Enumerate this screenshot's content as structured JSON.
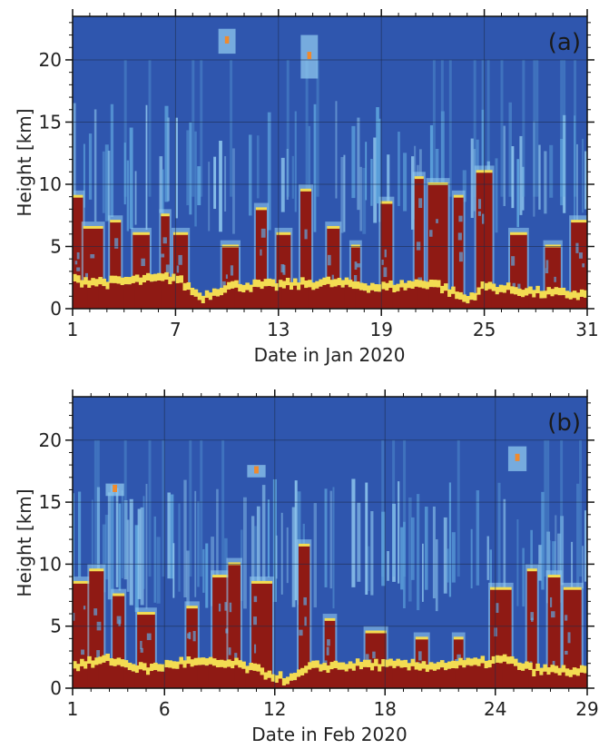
{
  "colors": {
    "background_blue": "#2f56ae",
    "light_blue": "#8fc8ee",
    "cyan": "#5fa6de",
    "yellow": "#f3dc52",
    "orange": "#ef8a2e",
    "dark_red": "#8f1a14"
  },
  "chart_data": [
    {
      "type": "heatmap",
      "panel_label": "(a)",
      "xlabel": "Date in Jan 2020",
      "ylabel": "Height [km]",
      "xlim": [
        1,
        31
      ],
      "ylim": [
        0,
        23.5
      ],
      "x_ticks": [
        1,
        7,
        13,
        19,
        25,
        31
      ],
      "y_ticks": [
        0,
        5,
        10,
        15,
        20
      ],
      "grid": true,
      "color_scale": [
        "#2f56ae",
        "#5fa6de",
        "#8fc8ee",
        "#f3dc52",
        "#ef8a2e",
        "#8f1a14"
      ],
      "surface_layer_km": [
        {
          "day": 1,
          "top": 2.0
        },
        {
          "day": 3,
          "top": 1.8
        },
        {
          "day": 5,
          "top": 2.0
        },
        {
          "day": 7,
          "top": 2.2
        },
        {
          "day": 8.5,
          "top": 0.6
        },
        {
          "day": 10,
          "top": 1.5
        },
        {
          "day": 13,
          "top": 1.6
        },
        {
          "day": 16,
          "top": 1.8
        },
        {
          "day": 19,
          "top": 1.4
        },
        {
          "day": 22,
          "top": 1.8
        },
        {
          "day": 24,
          "top": 0.4
        },
        {
          "day": 25,
          "top": 1.5
        },
        {
          "day": 28,
          "top": 1.0
        },
        {
          "day": 31,
          "top": 0.8
        }
      ],
      "aerosol_plumes_km": [
        {
          "day": 1.3,
          "top": 9.0
        },
        {
          "day": 2.2,
          "top": 6.5
        },
        {
          "day": 3.5,
          "top": 7.0
        },
        {
          "day": 5.0,
          "top": 6.0
        },
        {
          "day": 6.4,
          "top": 7.5
        },
        {
          "day": 7.3,
          "top": 6.0
        },
        {
          "day": 10.2,
          "top": 5.0
        },
        {
          "day": 12.0,
          "top": 8.0
        },
        {
          "day": 13.3,
          "top": 6.0
        },
        {
          "day": 14.6,
          "top": 9.5
        },
        {
          "day": 16.2,
          "top": 6.5
        },
        {
          "day": 17.5,
          "top": 5.0
        },
        {
          "day": 19.3,
          "top": 8.5
        },
        {
          "day": 21.2,
          "top": 10.5
        },
        {
          "day": 22.3,
          "top": 10.0
        },
        {
          "day": 23.5,
          "top": 9.0
        },
        {
          "day": 25.0,
          "top": 11.0
        },
        {
          "day": 27.0,
          "top": 6.0
        },
        {
          "day": 29.0,
          "top": 5.0
        },
        {
          "day": 30.6,
          "top": 7.0
        }
      ],
      "upper_features_km": [
        {
          "day": 14.8,
          "bottom": 18.5,
          "top": 22.0
        },
        {
          "day": 10.0,
          "bottom": 20.5,
          "top": 22.5
        }
      ]
    },
    {
      "type": "heatmap",
      "panel_label": "(b)",
      "xlabel": "Date in Feb 2020",
      "ylabel": "Height [km]",
      "xlim": [
        1,
        29
      ],
      "ylim": [
        0,
        23.5
      ],
      "x_ticks": [
        1,
        6,
        12,
        18,
        24,
        29
      ],
      "y_ticks": [
        0,
        5,
        10,
        15,
        20
      ],
      "grid": true,
      "color_scale": [
        "#2f56ae",
        "#5fa6de",
        "#8fc8ee",
        "#f3dc52",
        "#ef8a2e",
        "#8f1a14"
      ],
      "surface_layer_km": [
        {
          "day": 1,
          "top": 1.5
        },
        {
          "day": 3,
          "top": 2.0
        },
        {
          "day": 5,
          "top": 1.2
        },
        {
          "day": 7,
          "top": 1.8
        },
        {
          "day": 10,
          "top": 1.6
        },
        {
          "day": 12.8,
          "top": 0.3
        },
        {
          "day": 14,
          "top": 1.4
        },
        {
          "day": 17,
          "top": 1.6
        },
        {
          "day": 20,
          "top": 1.5
        },
        {
          "day": 23,
          "top": 1.7
        },
        {
          "day": 24.5,
          "top": 2.0
        },
        {
          "day": 26,
          "top": 1.2
        },
        {
          "day": 29,
          "top": 1.0
        }
      ],
      "aerosol_plumes_km": [
        {
          "day": 1.5,
          "top": 8.5
        },
        {
          "day": 2.3,
          "top": 9.5
        },
        {
          "day": 3.5,
          "top": 7.5
        },
        {
          "day": 5.0,
          "top": 6.0
        },
        {
          "day": 7.5,
          "top": 6.5
        },
        {
          "day": 9.2,
          "top": 9.0
        },
        {
          "day": 9.8,
          "top": 10.0
        },
        {
          "day": 11.3,
          "top": 8.5
        },
        {
          "day": 13.6,
          "top": 11.5
        },
        {
          "day": 15.0,
          "top": 5.5
        },
        {
          "day": 17.5,
          "top": 4.5
        },
        {
          "day": 20.0,
          "top": 4.0
        },
        {
          "day": 22.0,
          "top": 4.0
        },
        {
          "day": 24.3,
          "top": 8.0
        },
        {
          "day": 26.0,
          "top": 9.5
        },
        {
          "day": 27.2,
          "top": 9.0
        },
        {
          "day": 28.2,
          "top": 8.0
        }
      ],
      "upper_features_km": [
        {
          "day": 3.3,
          "bottom": 15.5,
          "top": 16.5
        },
        {
          "day": 11.0,
          "bottom": 17.0,
          "top": 18.0
        },
        {
          "day": 25.2,
          "bottom": 17.5,
          "top": 19.5
        }
      ]
    }
  ]
}
